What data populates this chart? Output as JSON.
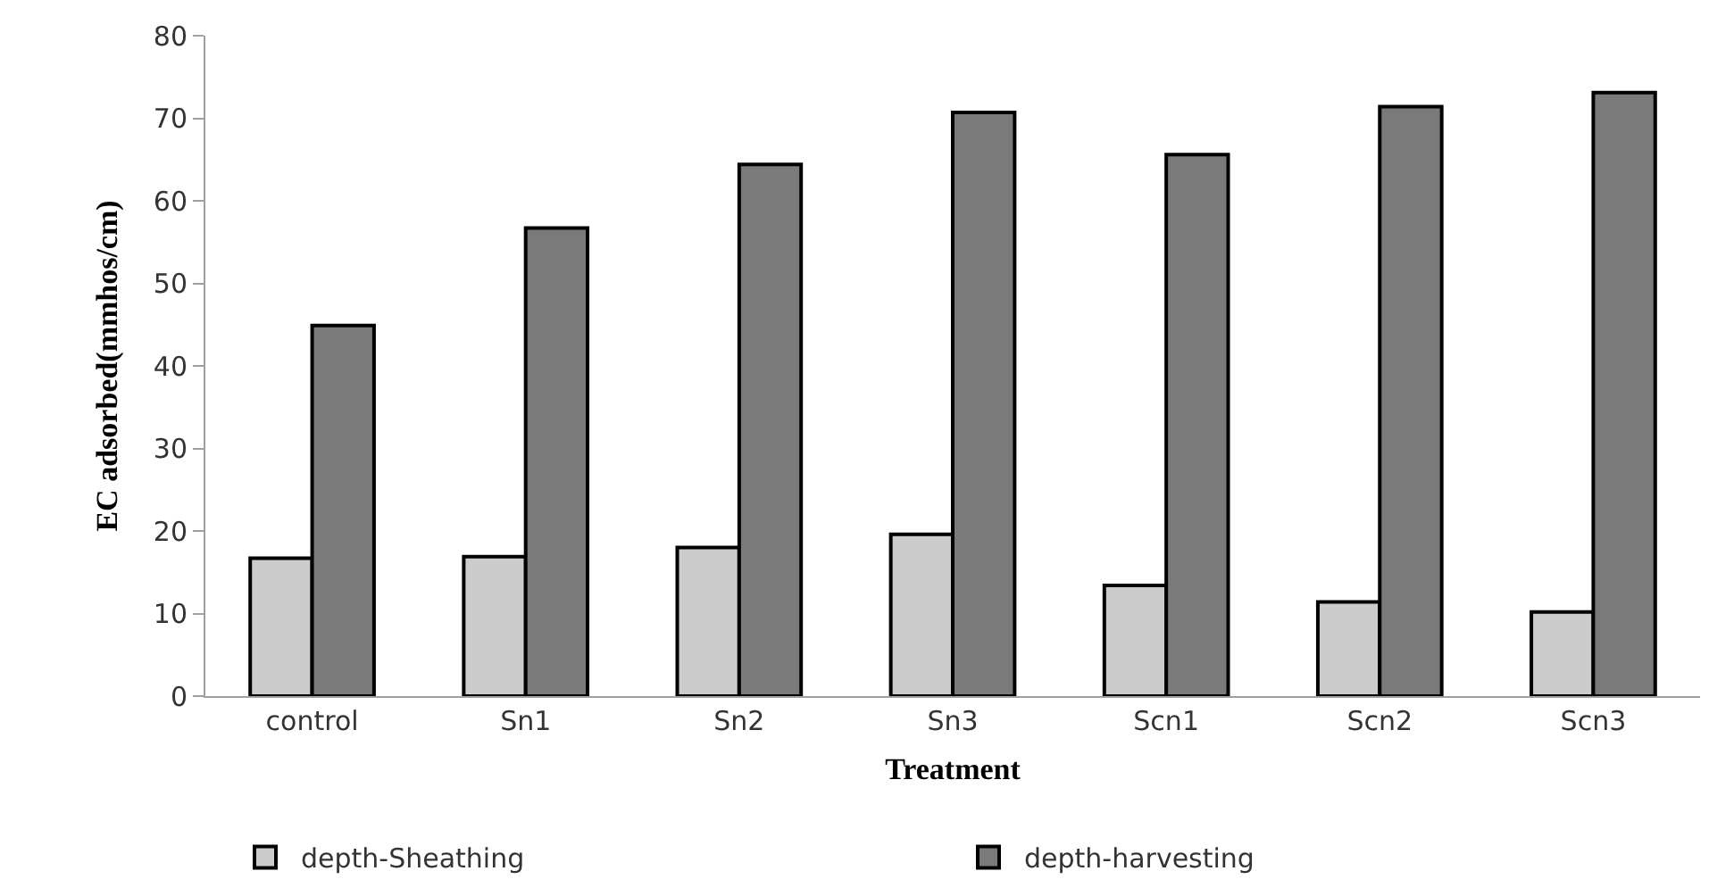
{
  "chart_data": {
    "type": "bar",
    "xlabel": "Treatment",
    "ylabel": "EC adsorbed(mmhos/cm)",
    "categories": [
      "control",
      "Sn1",
      "Sn2",
      "Sn3",
      "Scn1",
      "Scn2",
      "Scn3"
    ],
    "series": [
      {
        "name": "depth-Sheathing",
        "color": "#cccccc",
        "values": [
          16.7,
          16.9,
          18.0,
          19.6,
          13.4,
          11.4,
          10.2
        ]
      },
      {
        "name": "depth-harvesting",
        "color": "#7a7a7a",
        "values": [
          44.9,
          56.7,
          64.4,
          70.7,
          65.6,
          71.4,
          73.1
        ]
      }
    ],
    "ylim": [
      0,
      80
    ],
    "yticks": [
      0,
      10,
      20,
      30,
      40,
      50,
      60,
      70,
      80
    ],
    "legend": "bottom"
  }
}
